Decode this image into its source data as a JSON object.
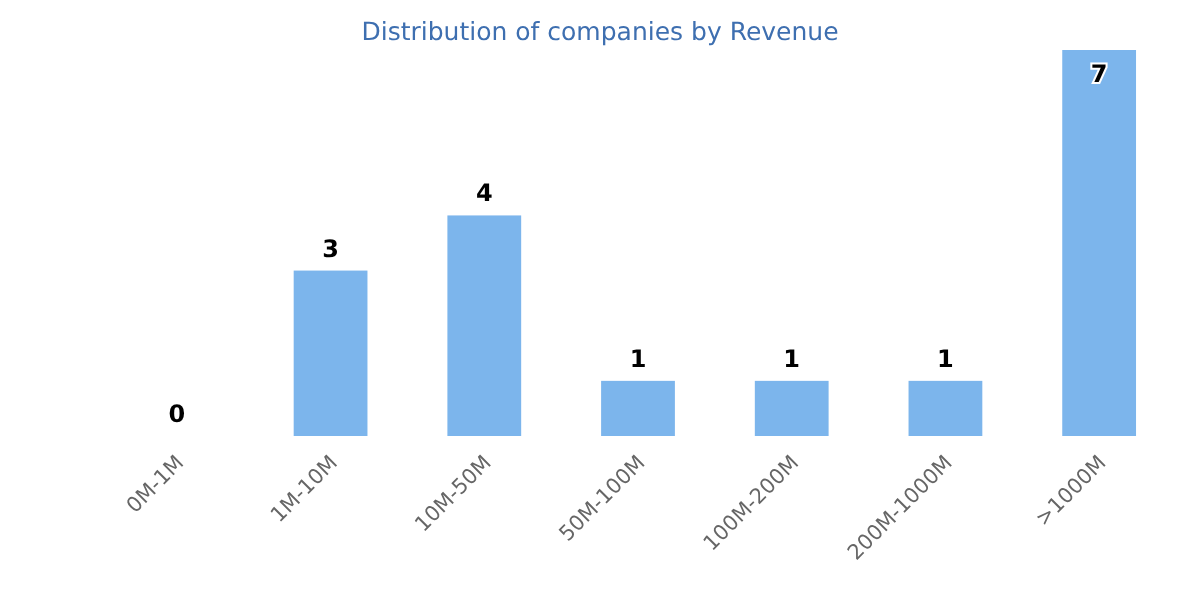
{
  "chart_data": {
    "type": "bar",
    "title": "Distribution of companies by Revenue",
    "categories": [
      "0M-1M",
      "1M-10M",
      "10M-50M",
      "50M-100M",
      "100M-200M",
      "200M-1000M",
      ">1000M"
    ],
    "values": [
      0,
      3,
      4,
      1,
      1,
      1,
      7
    ],
    "color": "#7cb5ec",
    "data_labels": true
  }
}
